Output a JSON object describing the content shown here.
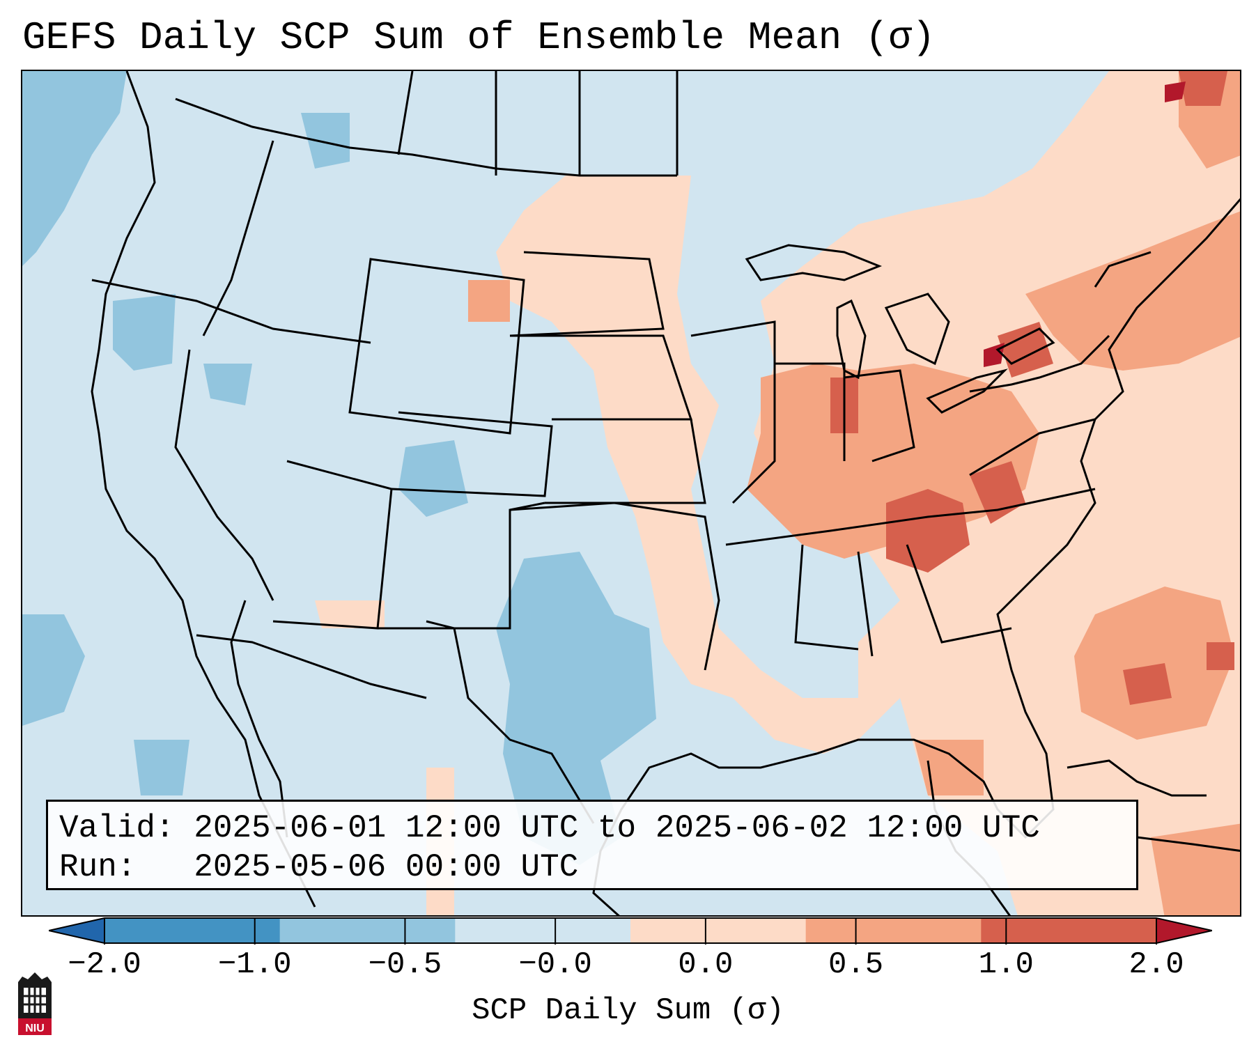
{
  "title": "GEFS Daily SCP Sum of Ensemble Mean (σ)",
  "info": {
    "valid_line": "Valid: 2025-06-01 12:00 UTC to 2025-06-02 12:00 UTC",
    "run_line": "Run:   2025-05-06 00:00 UTC"
  },
  "colorbar": {
    "label": "SCP Daily Sum (σ)",
    "ticks": [
      "−2.0",
      "−1.0",
      "−0.5",
      "−0.0",
      "0.0",
      "0.5",
      "1.0",
      "2.0"
    ],
    "colors": [
      "#4393c3",
      "#92c5de",
      "#d1e5f0",
      "#fddbc7",
      "#f4a582",
      "#d6604d"
    ],
    "extend_low_color": "#2166ac",
    "extend_high_color": "#b2182b"
  },
  "logo": {
    "text": "NIU",
    "icon": "niu-logo-icon"
  }
}
